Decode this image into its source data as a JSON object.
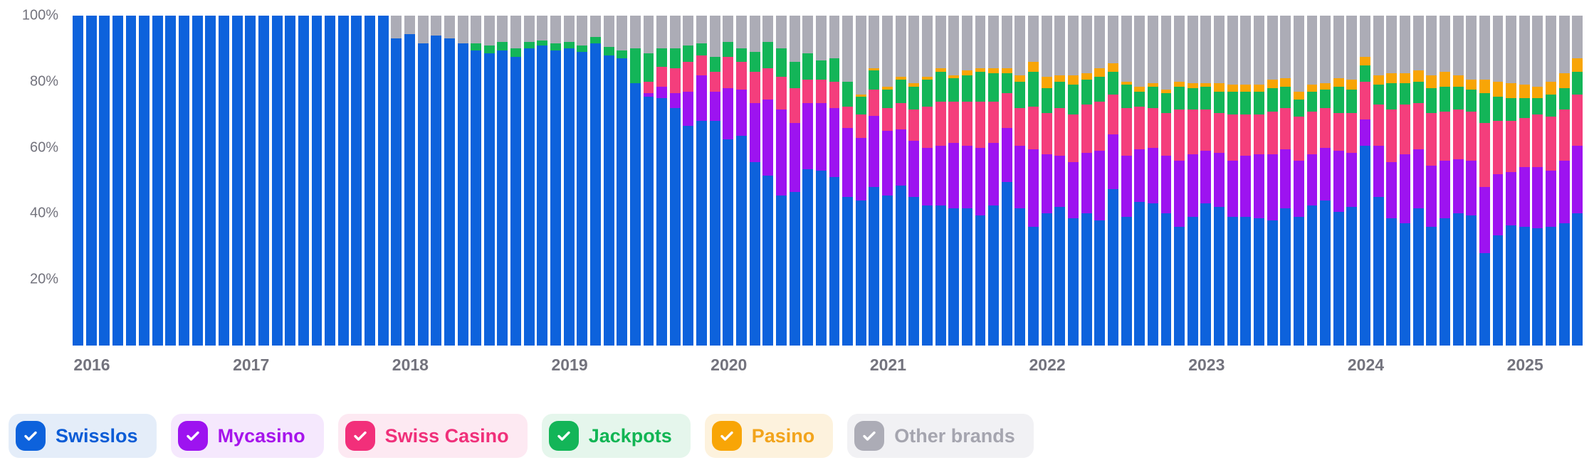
{
  "chart_data": {
    "type": "bar",
    "variant": "stacked-100-percent",
    "title": "",
    "xlabel": "",
    "ylabel": "",
    "unit": "%",
    "ylim": [
      0,
      100
    ],
    "grid": false,
    "x_start": "2016-01",
    "x_end": "2025-06",
    "x_tick_labels": [
      "2016",
      "2017",
      "2018",
      "2019",
      "2020",
      "2021",
      "2022",
      "2023",
      "2024",
      "2025"
    ],
    "x_tick_month_index": [
      0,
      12,
      24,
      36,
      48,
      60,
      72,
      84,
      96,
      108
    ],
    "y_tick_labels": [
      "100%",
      "80%",
      "60%",
      "40%",
      "20%"
    ],
    "y_tick_values": [
      100,
      80,
      60,
      40,
      20
    ],
    "stack_order_bottom_to_top": [
      "swisslos",
      "mycasino",
      "swiss_casino",
      "jackpots",
      "pasino",
      "other"
    ],
    "series": [
      {
        "id": "swisslos",
        "name": "Swisslos",
        "color": "#0d62dc",
        "values": [
          100,
          100,
          100,
          100,
          100,
          100,
          100,
          100,
          100,
          100,
          100,
          100,
          100,
          100,
          100,
          100,
          100,
          100,
          100,
          100,
          100,
          100,
          100,
          100,
          93,
          94.5,
          91.5,
          94,
          93,
          91.5,
          89.5,
          88.5,
          89.5,
          87.5,
          90,
          91,
          89.5,
          90,
          89,
          91.5,
          88,
          87,
          79.5,
          75.5,
          75,
          72,
          66.5,
          68,
          68,
          62.5,
          63.5,
          55.5,
          51.5,
          45.5,
          46.5,
          53.5,
          53,
          51,
          45,
          44,
          48,
          45.5,
          48.5,
          45,
          42.5,
          42.5,
          41.5,
          41.5,
          39.5,
          42.5,
          49.5,
          41.5,
          36,
          40,
          42,
          38.5,
          40,
          38,
          47.5,
          39,
          43.5,
          43,
          40,
          36,
          39,
          43,
          42,
          39,
          39,
          38.5,
          38,
          41.5,
          39,
          42.5,
          44,
          40.5,
          42,
          60.5,
          45,
          38.5,
          37,
          41.5,
          36,
          38.5,
          40,
          39.5,
          28,
          33.5,
          36.5,
          36,
          35.5,
          36,
          37,
          40
        ]
      },
      {
        "id": "mycasino",
        "name": "Mycasino",
        "color": "#9d13f0",
        "values": [
          0,
          0,
          0,
          0,
          0,
          0,
          0,
          0,
          0,
          0,
          0,
          0,
          0,
          0,
          0,
          0,
          0,
          0,
          0,
          0,
          0,
          0,
          0,
          0,
          0,
          0,
          0,
          0,
          0,
          0,
          0,
          0,
          0,
          0,
          0,
          0,
          0,
          0,
          0,
          0,
          0,
          0,
          0,
          1,
          3.5,
          4.5,
          10.5,
          14,
          9,
          15.5,
          14,
          18,
          23,
          26,
          21,
          20,
          20.5,
          21,
          21,
          19,
          21.5,
          19.5,
          17,
          17,
          17.5,
          18,
          20,
          19,
          20.5,
          19,
          16.5,
          19,
          23.5,
          18,
          15.5,
          17,
          18.5,
          21,
          16.5,
          18.5,
          16,
          17,
          17.5,
          20,
          19,
          16,
          16.5,
          17,
          18.5,
          19.5,
          20,
          18,
          17,
          15.5,
          16,
          18.5,
          16.5,
          8,
          15.5,
          17,
          21,
          18,
          18.5,
          17.5,
          16.5,
          16.5,
          20,
          18.5,
          16,
          18,
          18.5,
          17,
          19,
          20.5
        ]
      },
      {
        "id": "swiss_casino",
        "name": "Swiss Casino",
        "color": "#f43e7c",
        "values": [
          0,
          0,
          0,
          0,
          0,
          0,
          0,
          0,
          0,
          0,
          0,
          0,
          0,
          0,
          0,
          0,
          0,
          0,
          0,
          0,
          0,
          0,
          0,
          0,
          0,
          0,
          0,
          0,
          0,
          0,
          0,
          0,
          0,
          0,
          0,
          0,
          0,
          0,
          0,
          0,
          0,
          0,
          0,
          3.5,
          6,
          7.5,
          9,
          6,
          6,
          9.5,
          8.5,
          9.5,
          9.5,
          10,
          10.5,
          7,
          7,
          8,
          6.5,
          7,
          8,
          7,
          8,
          9.5,
          12.5,
          13.5,
          12.5,
          13.5,
          14,
          12.5,
          10.5,
          11.5,
          13,
          12.5,
          14.5,
          14.5,
          14.5,
          15,
          12,
          14.5,
          13,
          12,
          13,
          15.5,
          13.5,
          12.5,
          12,
          14,
          12.5,
          12,
          13,
          12.5,
          13.5,
          13,
          12,
          11.5,
          12,
          11.5,
          12.5,
          16,
          15,
          14,
          16,
          15,
          15,
          15,
          19.5,
          16,
          15.5,
          15,
          16,
          16.5,
          15.5,
          15.5
        ]
      },
      {
        "id": "jackpots",
        "name": "Jackpots",
        "color": "#13b558",
        "values": [
          0,
          0,
          0,
          0,
          0,
          0,
          0,
          0,
          0,
          0,
          0,
          0,
          0,
          0,
          0,
          0,
          0,
          0,
          0,
          0,
          0,
          0,
          0,
          0,
          0,
          0,
          0,
          0,
          0,
          0,
          2,
          2.5,
          2.5,
          2.5,
          2,
          1.5,
          2,
          2,
          2,
          2,
          2.5,
          2.5,
          10.5,
          8.5,
          5.5,
          6,
          5,
          3.5,
          4.5,
          4.5,
          4,
          6,
          8,
          8.5,
          8,
          8,
          6,
          7,
          7.5,
          5.5,
          6,
          5.5,
          7,
          7,
          8,
          9,
          7,
          8,
          9,
          8.5,
          6,
          8,
          10.5,
          7.5,
          8,
          9,
          7.5,
          7.5,
          7,
          7,
          4.5,
          6.5,
          6,
          7,
          6.5,
          7,
          6.5,
          7,
          7,
          7,
          7,
          6.5,
          5,
          6,
          5.5,
          8,
          7,
          5,
          6,
          8,
          6.5,
          6.5,
          7.5,
          7.5,
          7,
          6.5,
          9,
          7.5,
          7,
          6,
          5,
          6.5,
          6.5,
          7
        ]
      },
      {
        "id": "pasino",
        "name": "Pasino",
        "color": "#f8a506",
        "values": [
          0,
          0,
          0,
          0,
          0,
          0,
          0,
          0,
          0,
          0,
          0,
          0,
          0,
          0,
          0,
          0,
          0,
          0,
          0,
          0,
          0,
          0,
          0,
          0,
          0,
          0,
          0,
          0,
          0,
          0,
          0,
          0,
          0,
          0,
          0,
          0,
          0,
          0,
          0,
          0,
          0,
          0,
          0,
          0,
          0,
          0,
          0,
          0,
          0,
          0,
          0,
          0,
          0,
          0,
          0,
          0,
          0,
          0,
          0,
          0.5,
          0.5,
          1,
          1,
          1,
          1,
          1,
          1,
          1.5,
          1,
          1.5,
          1.5,
          2,
          3,
          3.5,
          2,
          3,
          2,
          2.5,
          2.5,
          1,
          1.5,
          1,
          1,
          1.5,
          1.5,
          1,
          2.5,
          2,
          2,
          2,
          2.5,
          2.5,
          2.5,
          2,
          2,
          2.5,
          3,
          2.5,
          3,
          3,
          3,
          3.5,
          4,
          4.5,
          3.5,
          3,
          4,
          4.5,
          4.5,
          4,
          3.5,
          4,
          4.5,
          4
        ]
      },
      {
        "id": "other",
        "name": "Other brands",
        "color": "#acacb6",
        "values": [
          0,
          0,
          0,
          0,
          0,
          0,
          0,
          0,
          0,
          0,
          0,
          0,
          0,
          0,
          0,
          0,
          0,
          0,
          0,
          0,
          0,
          0,
          0,
          0,
          7,
          5.5,
          8.5,
          6,
          7,
          8.5,
          8.5,
          9,
          8,
          10,
          8,
          7.5,
          8.5,
          8,
          9,
          6.5,
          9.5,
          10.5,
          10,
          11.5,
          10,
          10,
          9,
          8.5,
          12.5,
          8,
          10,
          11,
          8,
          10,
          14,
          11.5,
          13.5,
          13,
          20,
          24,
          16,
          21.5,
          18.5,
          20.5,
          18.5,
          16,
          18,
          16.5,
          16,
          16,
          16,
          18,
          14,
          18.5,
          18,
          18,
          17.5,
          16,
          14.5,
          20,
          21.5,
          20.5,
          22.5,
          20,
          20.5,
          20.5,
          20.5,
          21,
          21,
          21,
          19.5,
          19,
          23,
          21,
          20.5,
          19,
          19.5,
          12.5,
          18,
          17.5,
          17.5,
          16.5,
          18,
          17,
          18,
          19.5,
          19.5,
          20,
          20.5,
          21,
          21.5,
          20,
          17.5,
          13
        ]
      }
    ]
  },
  "legend": {
    "items": [
      {
        "id": "swisslos",
        "label": "Swisslos",
        "checkbox_color": "#0d62dc",
        "label_color": "#0b5cd6",
        "bg": "#e4edf9",
        "checked": true
      },
      {
        "id": "mycasino",
        "label": "Mycasino",
        "checkbox_color": "#9d13f0",
        "label_color": "#a614ec",
        "bg": "#f5e8fd",
        "checked": true
      },
      {
        "id": "swiss_casino",
        "label": "Swiss Casino",
        "checkbox_color": "#f22f7a",
        "label_color": "#f0307a",
        "bg": "#fde9f2",
        "checked": true
      },
      {
        "id": "jackpots",
        "label": "Jackpots",
        "checkbox_color": "#13b558",
        "label_color": "#11b554",
        "bg": "#e5f6ec",
        "checked": true
      },
      {
        "id": "pasino",
        "label": "Pasino",
        "checkbox_color": "#f8a506",
        "label_color": "#f2a41c",
        "bg": "#fdf2dd",
        "checked": true
      },
      {
        "id": "other",
        "label": "Other brands",
        "checkbox_color": "#acacb6",
        "label_color": "#a5a5af",
        "bg": "#f1f1f4",
        "checked": true
      }
    ]
  }
}
